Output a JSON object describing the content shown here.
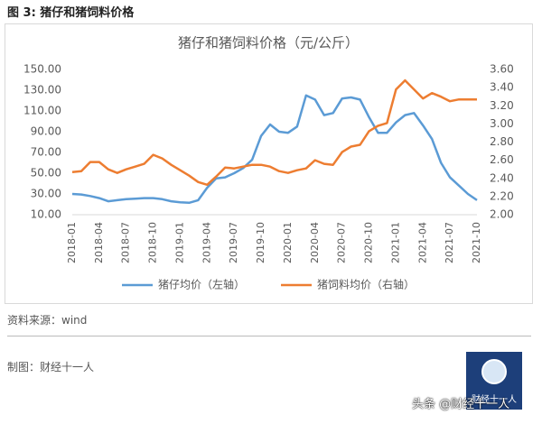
{
  "header": {
    "title": "图 3:  猪仔和猪饲料价格"
  },
  "chart_data": {
    "type": "line",
    "title": "猪仔和猪饲料价格（元/公斤）",
    "categories": [
      "2018-01",
      null,
      null,
      "2018-04",
      null,
      null,
      "2018-07",
      null,
      null,
      "2018-10",
      null,
      null,
      "2019-01",
      null,
      null,
      "2019-04",
      null,
      null,
      "2019-07",
      null,
      null,
      "2019-10",
      null,
      null,
      "2020-01",
      null,
      null,
      "2020-04",
      null,
      null,
      "2020-07",
      null,
      null,
      "2020-10",
      null,
      null,
      "2021-01",
      null,
      null,
      "2021-04",
      null,
      null,
      "2021-07",
      null,
      null,
      "2021-10"
    ],
    "series": [
      {
        "name": "猪仔均价（左轴）",
        "color": "#5b9bd5",
        "axis": "y",
        "values": [
          30,
          29.5,
          28,
          26,
          23,
          24,
          25,
          25.5,
          26,
          26,
          25,
          23,
          22,
          21.5,
          24,
          36,
          45,
          46,
          50,
          55,
          63,
          86,
          97,
          90,
          89,
          95,
          125,
          121,
          106,
          108,
          122,
          123,
          121,
          104,
          89,
          89,
          99,
          106,
          108,
          96,
          83,
          60,
          46,
          38,
          30,
          24
        ]
      },
      {
        "name": "猪饲料均价（右轴）",
        "color": "#ed7d31",
        "axis": "y2",
        "values": [
          2.47,
          2.48,
          2.58,
          2.58,
          2.5,
          2.46,
          2.5,
          2.53,
          2.56,
          2.66,
          2.62,
          2.55,
          2.49,
          2.43,
          2.36,
          2.33,
          2.42,
          2.52,
          2.51,
          2.53,
          2.55,
          2.55,
          2.53,
          2.48,
          2.46,
          2.49,
          2.51,
          2.6,
          2.56,
          2.55,
          2.69,
          2.75,
          2.77,
          2.92,
          2.98,
          3.01,
          3.38,
          3.48,
          3.38,
          3.28,
          3.34,
          3.3,
          3.25,
          3.27,
          3.27,
          3.27
        ]
      }
    ],
    "ylim": [
      10,
      150
    ],
    "yticks": [
      {
        "value": 10,
        "label": "10.00"
      },
      {
        "value": 30,
        "label": "30.00"
      },
      {
        "value": 50,
        "label": "50.00"
      },
      {
        "value": 70,
        "label": "70.00"
      },
      {
        "value": 90,
        "label": "90.00"
      },
      {
        "value": 110,
        "label": "110.00"
      },
      {
        "value": 130,
        "label": "130.00"
      },
      {
        "value": 150,
        "label": "150.00"
      }
    ],
    "y2lim": [
      2.0,
      3.6
    ],
    "y2ticks": [
      {
        "value": 2.0,
        "label": "2.00"
      },
      {
        "value": 2.2,
        "label": "2.20"
      },
      {
        "value": 2.4,
        "label": "2.40"
      },
      {
        "value": 2.6,
        "label": "2.60"
      },
      {
        "value": 2.8,
        "label": "2.80"
      },
      {
        "value": 3.0,
        "label": "3.00"
      },
      {
        "value": 3.2,
        "label": "3.20"
      },
      {
        "value": 3.4,
        "label": "3.40"
      },
      {
        "value": 3.6,
        "label": "3.60"
      }
    ],
    "legend": "bottom"
  },
  "footer": {
    "source": "资料来源：wind",
    "credit": "制图：财经十一人",
    "logo": "财经十一人",
    "watermark": "头条 @财经十一人"
  }
}
